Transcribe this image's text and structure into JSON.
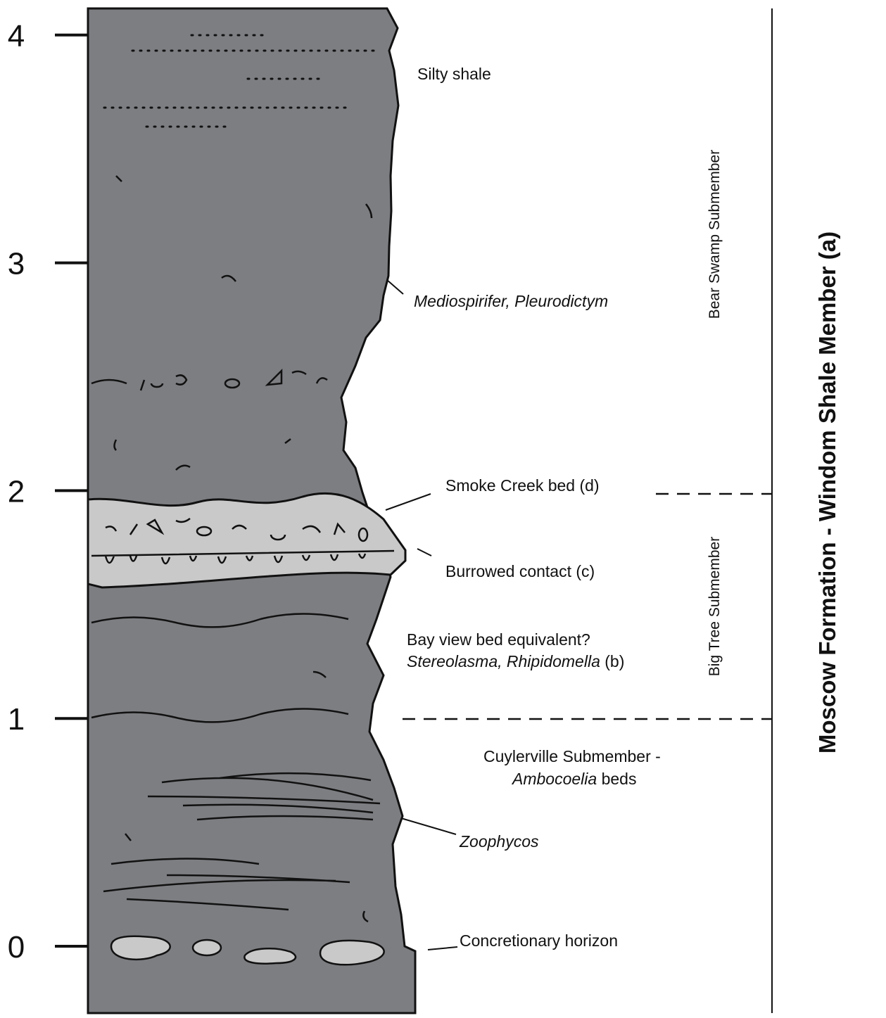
{
  "scale": {
    "ticks": [
      0,
      1,
      2,
      3,
      4
    ]
  },
  "annotations": {
    "silty_shale": "Silty shale",
    "mediospirifer": "Mediospirifer, Pleurodictym",
    "smoke_creek": "Smoke Creek bed (d)",
    "burrowed": "Burrowed contact (c)",
    "bay_view": "Bay view bed equivalent?",
    "stereolasma": {
      "italic": "Stereolasma, Rhipidomella",
      "rest": "(b)"
    },
    "cuylerville": "Cuylerville Submember -",
    "ambocoelia": {
      "italic": "Ambocoelia",
      "rest": "beds"
    },
    "zoophycos": "Zoophycos",
    "concretionary": "Concretionary horizon"
  },
  "units": {
    "bear_swamp": "Bear Swamp Submember",
    "big_tree": "Big Tree Submember",
    "formation": "Moscow Formation - Windom Shale Member (a)"
  }
}
